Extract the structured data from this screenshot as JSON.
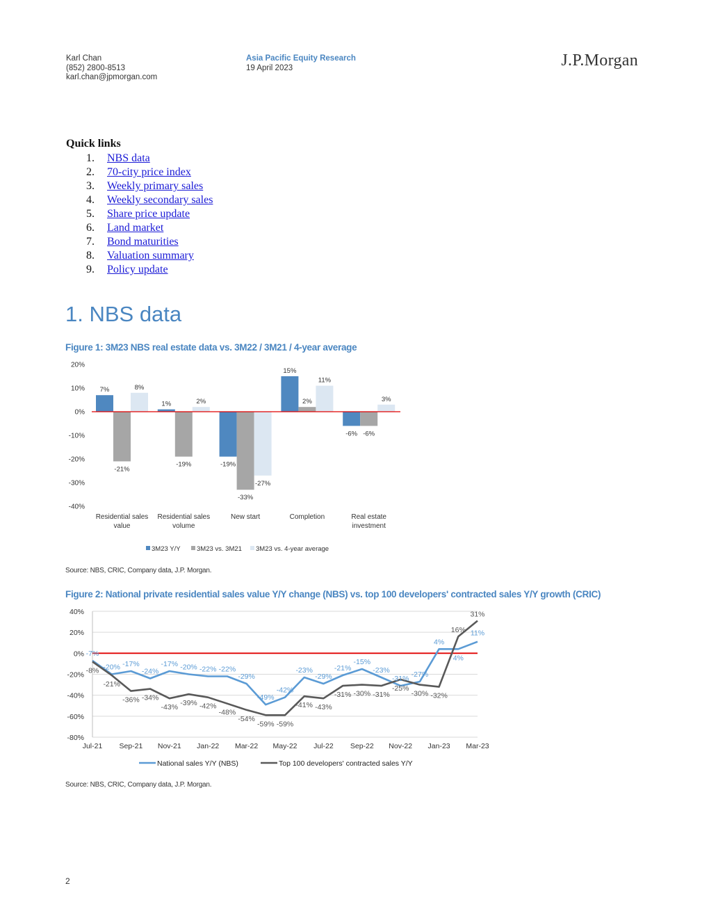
{
  "header": {
    "author_name": "Karl Chan",
    "author_phone": "(852) 2800-8513",
    "author_email": "karl.chan@jpmorgan.com",
    "department": "Asia Pacific Equity Research",
    "date": "19 April 2023",
    "logo_text": "J.P.Morgan"
  },
  "quick_links": {
    "title": "Quick links",
    "items": [
      {
        "num": "1.",
        "label": "NBS data"
      },
      {
        "num": "2.",
        "label": "70-city price index"
      },
      {
        "num": "3.",
        "label": "Weekly primary sales"
      },
      {
        "num": "4.",
        "label": "Weekly secondary sales"
      },
      {
        "num": "5.",
        "label": "Share price update"
      },
      {
        "num": "6.",
        "label": "Land market"
      },
      {
        "num": "7.",
        "label": "Bond maturities"
      },
      {
        "num": "8.",
        "label": "Valuation summary"
      },
      {
        "num": "9.",
        "label": "Policy update"
      }
    ]
  },
  "section_title": "1. NBS data",
  "figure1": {
    "title": "Figure 1: 3M23 NBS real estate data vs. 3M22 / 3M21 / 4-year average",
    "source": "Source: NBS, CRIC, Company data, J.P. Morgan."
  },
  "figure2": {
    "title": "Figure 2: National private residential sales value Y/Y change (NBS) vs. top 100 developers' contracted sales Y/Y growth (CRIC)",
    "source": "Source: NBS, CRIC, Company data, J.P. Morgan."
  },
  "page_number": "2",
  "colors": {
    "accent": "#4a86c1",
    "bar_series1": "#4f88c0",
    "bar_series2": "#a6a6a6",
    "bar_series3": "#dce7f2",
    "line_national": "#5b9bd5",
    "line_top100": "#595959",
    "zero_line": "#e00000"
  },
  "chart_data": [
    {
      "type": "bar",
      "title": "Figure 1: 3M23 NBS real estate data vs. 3M22 / 3M21 / 4-year average",
      "categories": [
        [
          "Residential sales",
          "value"
        ],
        [
          "Residential sales",
          "volume"
        ],
        [
          "New start"
        ],
        [
          "Completion"
        ],
        [
          "Real estate",
          "investment"
        ]
      ],
      "series": [
        {
          "name": "3M23 Y/Y",
          "values": [
            7,
            1,
            -19,
            15,
            -6
          ],
          "labels": [
            "7%",
            "1%",
            "-19%",
            "15%",
            "-6%"
          ]
        },
        {
          "name": "3M23 vs. 3M21",
          "values": [
            -21,
            -19,
            -33,
            2,
            -6
          ],
          "labels": [
            "-21%",
            "-19%",
            "-33%",
            "2%",
            "-6%"
          ]
        },
        {
          "name": "3M23 vs. 4-year average",
          "values": [
            8,
            2,
            -27,
            11,
            3
          ],
          "labels": [
            "8%",
            "2%",
            "-27%",
            "11%",
            "3%"
          ]
        }
      ],
      "yticks": [
        "20%",
        "10%",
        "0%",
        "-10%",
        "-20%",
        "-30%",
        "-40%"
      ],
      "ylim": [
        -40,
        20
      ],
      "legend_position": "bottom",
      "grid": false
    },
    {
      "type": "line",
      "title": "Figure 2: National private residential sales value Y/Y change (NBS) vs. top 100 developers' contracted sales Y/Y growth (CRIC)",
      "x": [
        "Jul-21",
        "Aug-21",
        "Sep-21",
        "Oct-21",
        "Nov-21",
        "Dec-21",
        "Jan-22",
        "Feb-22",
        "Mar-22",
        "Apr-22",
        "May-22",
        "Jun-22",
        "Jul-22",
        "Aug-22",
        "Sep-22",
        "Oct-22",
        "Nov-22",
        "Dec-22",
        "Jan-23",
        "Feb-23",
        "Mar-23"
      ],
      "xticks": [
        "Jul-21",
        "Sep-21",
        "Nov-21",
        "Jan-22",
        "Mar-22",
        "May-22",
        "Jul-22",
        "Sep-22",
        "Nov-22",
        "Jan-23",
        "Mar-23"
      ],
      "series": [
        {
          "name": "National sales Y/Y (NBS)",
          "values": [
            -7,
            -20,
            -17,
            -24,
            -17,
            -20,
            -22,
            -22,
            -29,
            -49,
            -42,
            -23,
            -29,
            -21,
            -15,
            -23,
            -31,
            -27,
            4,
            4,
            11
          ]
        },
        {
          "name": "Top 100 developers' contracted sales Y/Y",
          "values": [
            -8,
            -21,
            -36,
            -34,
            -43,
            -39,
            -42,
            -48,
            -54,
            -59,
            -59,
            -41,
            -43,
            -31,
            -30,
            -31,
            -25,
            -30,
            -32,
            16,
            31
          ]
        }
      ],
      "yticks": [
        "40%",
        "20%",
        "0%",
        "-20%",
        "-40%",
        "-60%",
        "-80%"
      ],
      "ylim": [
        -80,
        40
      ],
      "legend_position": "bottom",
      "grid": true
    }
  ]
}
